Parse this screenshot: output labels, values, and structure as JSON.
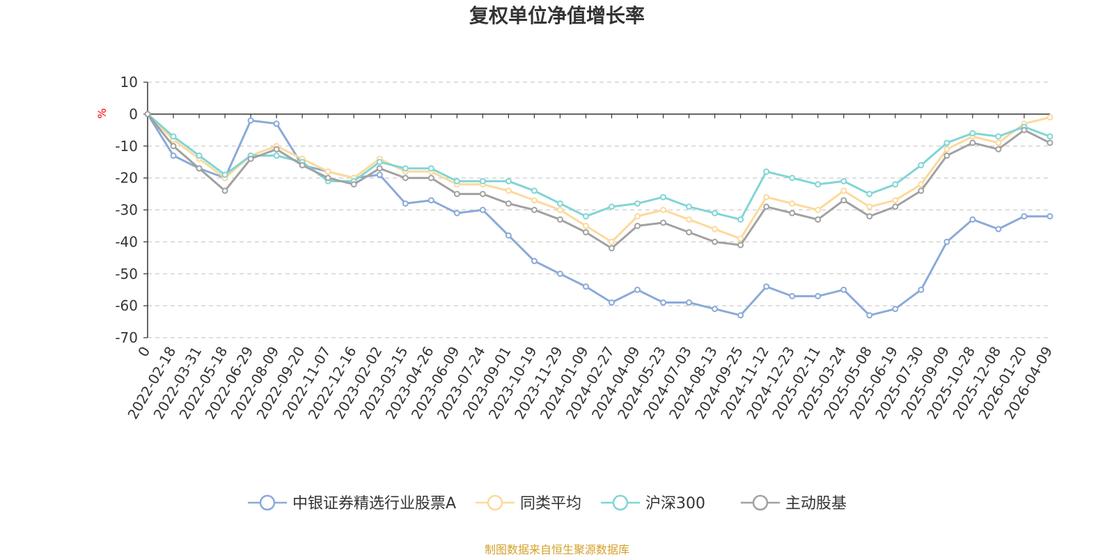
{
  "chart_data": {
    "type": "line",
    "title": "复权单位净值增长率",
    "ylabel": "%",
    "ylim": [
      -70,
      10
    ],
    "yticks": [
      10,
      0,
      -10,
      -20,
      -30,
      -40,
      -50,
      -60,
      -70
    ],
    "grid": true,
    "legend_position": "bottom",
    "categories": [
      "0",
      "2022-02-18",
      "2022-03-31",
      "2022-05-18",
      "2022-06-29",
      "2022-08-09",
      "2022-09-20",
      "2022-11-07",
      "2022-12-16",
      "2023-02-02",
      "2023-03-15",
      "2023-04-26",
      "2023-06-09",
      "2023-07-24",
      "2023-09-01",
      "2023-10-19",
      "2023-11-29",
      "2024-01-09",
      "2024-02-27",
      "2024-04-09",
      "2024-05-23",
      "2024-07-03",
      "2024-08-13",
      "2024-09-25",
      "2024-11-12",
      "2024-12-23",
      "2025-02-11",
      "2025-03-24",
      "2025-05-08",
      "2025-06-19",
      "2025-07-30",
      "2025-09-09",
      "2025-10-28",
      "2025-12-08",
      "2026-01-20",
      "2026-04-09"
    ],
    "series": [
      {
        "name": "中银证券精选行业股票A",
        "color": "#8aaad8",
        "values": [
          0,
          -13,
          -17,
          -20,
          -2,
          -3,
          -16,
          -18,
          -20,
          -19,
          -28,
          -27,
          -31,
          -30,
          -38,
          -46,
          -50,
          -54,
          -59,
          -55,
          -59,
          -59,
          -61,
          -63,
          -54,
          -57,
          -57,
          -55,
          -63,
          -61,
          -55,
          -40,
          -33,
          -36,
          -32,
          -32
        ]
      },
      {
        "name": "同类平均",
        "color": "#fdd99b",
        "values": [
          0,
          -8,
          -14,
          -20,
          -13,
          -10,
          -14,
          -18,
          -20,
          -14,
          -18,
          -18,
          -22,
          -22,
          -24,
          -27,
          -30,
          -35,
          -40,
          -32,
          -30,
          -33,
          -36,
          -39,
          -26,
          -28,
          -30,
          -24,
          -29,
          -27,
          -22,
          -11,
          -7,
          -9,
          -3,
          -1
        ]
      },
      {
        "name": "沪深300",
        "color": "#80d5d5",
        "values": [
          0,
          -7,
          -13,
          -19,
          -13,
          -13,
          -15,
          -21,
          -21,
          -15,
          -17,
          -17,
          -21,
          -21,
          -21,
          -24,
          -28,
          -32,
          -29,
          -28,
          -26,
          -29,
          -31,
          -33,
          -18,
          -20,
          -22,
          -21,
          -25,
          -22,
          -16,
          -9,
          -6,
          -7,
          -4,
          -7
        ]
      },
      {
        "name": "主动股基",
        "color": "#a1a1a1",
        "values": [
          0,
          -10,
          -17,
          -24,
          -14,
          -11,
          -16,
          -20,
          -22,
          -17,
          -20,
          -20,
          -25,
          -25,
          -28,
          -30,
          -33,
          -37,
          -42,
          -35,
          -34,
          -37,
          -40,
          -41,
          -29,
          -31,
          -33,
          -27,
          -32,
          -29,
          -24,
          -13,
          -9,
          -11,
          -5,
          -9
        ]
      }
    ]
  },
  "source_note": "制图数据来自恒生聚源数据库",
  "source_color": "#d4a02a"
}
